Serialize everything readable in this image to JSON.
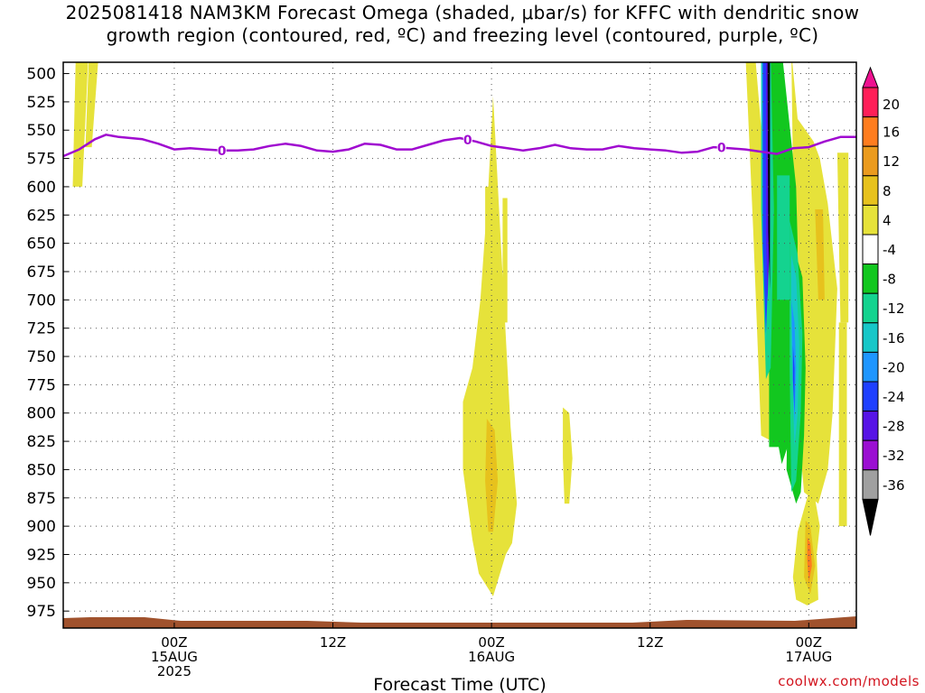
{
  "chart_data": {
    "type": "heatmap",
    "title_lines": [
      "2025081418 NAM3KM Forecast Omega (shaded, μbar/s) for KFFC with dendritic snow",
      "growth region (contoured, red, ºC) and freezing level (contoured, purple, ºC)"
    ],
    "xlabel": "Forecast Time (UTC)",
    "x_range_hours": [
      -7,
      43
    ],
    "y_range_mb": [
      490,
      990
    ],
    "y_ticks": [
      500,
      525,
      550,
      575,
      600,
      625,
      650,
      675,
      700,
      725,
      750,
      775,
      800,
      825,
      850,
      875,
      900,
      925,
      950,
      975
    ],
    "x_ticks": [
      {
        "hour": 0,
        "lines": [
          "00Z",
          "15AUG",
          "2025"
        ]
      },
      {
        "hour": 10,
        "lines": [
          "12Z"
        ]
      },
      {
        "hour": 20,
        "lines": [
          "00Z",
          "16AUG"
        ]
      },
      {
        "hour": 30,
        "lines": [
          "12Z"
        ]
      },
      {
        "hour": 40,
        "lines": [
          "00Z",
          "17AUG"
        ]
      }
    ],
    "grid": true,
    "colorbar": {
      "labels": [
        "20",
        "16",
        "12",
        "8",
        "4",
        "-4",
        "-8",
        "-12",
        "-16",
        "-20",
        "-24",
        "-28",
        "-32",
        "-36"
      ],
      "colors": [
        "#ff1f58",
        "#ff7d1f",
        "#eb9b1e",
        "#e7c21d",
        "#e6e23a",
        "#ffffff",
        "#12c71f",
        "#14d38f",
        "#17c7c8",
        "#1e96ff",
        "#1f40ff",
        "#5714e6",
        "#9b0fd2",
        "#a0a0a0"
      ],
      "top_color": "#ee1190",
      "bottom_color": "#000000"
    },
    "freezing_level": {
      "label": "0",
      "color": "#a00bd0",
      "hours": [
        -7,
        -6,
        -5,
        -4.3,
        -3.5,
        -2,
        -1,
        0,
        1,
        2,
        3,
        4,
        5,
        6,
        7,
        8,
        9,
        10,
        11,
        12,
        13,
        14,
        15,
        16,
        17,
        18,
        19,
        20,
        21,
        22,
        23,
        24,
        25,
        26,
        27,
        28,
        29,
        30,
        31,
        32,
        33,
        34,
        35,
        36,
        37,
        38,
        39,
        40,
        41,
        42,
        43
      ],
      "pressure_mb": [
        573,
        567,
        558,
        554,
        556,
        558,
        562,
        567,
        566,
        567,
        568,
        568,
        567,
        564,
        562,
        564,
        568,
        569,
        567,
        562,
        563,
        567,
        567,
        563,
        559,
        557,
        560,
        564,
        566,
        568,
        566,
        563,
        566,
        567,
        567,
        564,
        566,
        567,
        568,
        570,
        569,
        565,
        566,
        567,
        569,
        571,
        566,
        565,
        560,
        556,
        556
      ]
    },
    "omega_regions": [
      {
        "level": "4",
        "hours": [
          -6.2,
          -5.4,
          -5.8,
          -6.4
        ],
        "pressure_mb": [
          480,
          480,
          600,
          600
        ]
      },
      {
        "level": "4",
        "hours": [
          -5.4,
          -4.8,
          -5.2,
          -5.6
        ],
        "pressure_mb": [
          490,
          490,
          565,
          565
        ]
      },
      {
        "level": "4",
        "hours": [
          18.2,
          18.8,
          19.3,
          19.8,
          20.1,
          21.2,
          21.6,
          21.3,
          20.9,
          20.1,
          19.2,
          18.8,
          18.2
        ],
        "pressure_mb": [
          790,
          760,
          700,
          600,
          520,
          812,
          880,
          915,
          925,
          962,
          942,
          912,
          850
        ]
      },
      {
        "level": "4",
        "hours": [
          19.6,
          20.3,
          20.3,
          19.6
        ],
        "pressure_mb": [
          600,
          600,
          760,
          760
        ]
      },
      {
        "level": "8",
        "hours": [
          19.7,
          20.2,
          20.4,
          20.1,
          19.8,
          19.6
        ],
        "pressure_mb": [
          805,
          815,
          860,
          905,
          905,
          860
        ]
      },
      {
        "level": "4",
        "hours": [
          24.5,
          24.9,
          25.1,
          24.9,
          24.6,
          24.5
        ],
        "pressure_mb": [
          795,
          800,
          840,
          880,
          880,
          840
        ]
      },
      {
        "level": "4",
        "hours": [
          20.7,
          21.0,
          21.0,
          20.7
        ],
        "pressure_mb": [
          610,
          610,
          720,
          720
        ]
      },
      {
        "level": "4",
        "hours": [
          36.0,
          36.6,
          37.1,
          37.2,
          37.7,
          38.1,
          38.2,
          38.1,
          37.7,
          37.0,
          36.5
        ],
        "pressure_mb": [
          480,
          480,
          565,
          600,
          660,
          720,
          760,
          790,
          825,
          820,
          640
        ]
      },
      {
        "level": "4",
        "hours": [
          38.9,
          39.3,
          40.3,
          40.7,
          41.2,
          41.8,
          41.5,
          41.2,
          40.6,
          39.7,
          39.2
        ],
        "pressure_mb": [
          480,
          540,
          560,
          575,
          615,
          690,
          800,
          850,
          880,
          870,
          790
        ]
      },
      {
        "level": "4",
        "hours": [
          41.8,
          42.5,
          42.5,
          42.0
        ],
        "pressure_mb": [
          570,
          570,
          720,
          720
        ]
      },
      {
        "level": "4",
        "hours": [
          41.9,
          42.4,
          42.4,
          41.9
        ],
        "pressure_mb": [
          720,
          720,
          900,
          900
        ]
      },
      {
        "level": "8",
        "hours": [
          40.4,
          40.9,
          41.0,
          40.6
        ],
        "pressure_mb": [
          620,
          620,
          700,
          700
        ]
      },
      {
        "level": "4",
        "hours": [
          39.8,
          40.2,
          40.7,
          40.5,
          40.6,
          39.9,
          39.2,
          39.0,
          39.3
        ],
        "pressure_mb": [
          880,
          860,
          900,
          925,
          965,
          970,
          965,
          945,
          905
        ]
      },
      {
        "level": "8",
        "hours": [
          39.8,
          40.1,
          40.4,
          40.1,
          39.7
        ],
        "pressure_mb": [
          895,
          900,
          935,
          960,
          945
        ]
      },
      {
        "level": "16",
        "hours": [
          39.9,
          40.1,
          40.2,
          40.0,
          39.9
        ],
        "pressure_mb": [
          910,
          915,
          935,
          950,
          930
        ]
      },
      {
        "level": "-8",
        "hours": [
          37.4,
          38.3,
          38.9,
          39.2,
          39.3,
          39.2,
          38.9,
          38.3,
          38.1,
          37.5,
          37.5
        ],
        "pressure_mb": [
          480,
          480,
          560,
          600,
          650,
          750,
          820,
          845,
          830,
          830,
          760
        ]
      },
      {
        "level": "-8",
        "hours": [
          39.0,
          39.6,
          39.8,
          39.7,
          39.5,
          39.2,
          38.6,
          38.7
        ],
        "pressure_mb": [
          650,
          680,
          760,
          820,
          870,
          880,
          850,
          760
        ]
      },
      {
        "level": "-12",
        "hours": [
          38.0,
          38.8,
          38.8,
          38.0
        ],
        "pressure_mb": [
          590,
          590,
          700,
          700
        ]
      },
      {
        "level": "-12",
        "hours": [
          38.8,
          39.3,
          39.6,
          39.5,
          39.2,
          38.9,
          38.8
        ],
        "pressure_mb": [
          630,
          660,
          730,
          800,
          860,
          870,
          760
        ]
      },
      {
        "level": "-16",
        "hours": [
          38.9,
          39.2,
          39.4,
          39.3,
          39.1,
          38.9
        ],
        "pressure_mb": [
          660,
          680,
          740,
          800,
          830,
          740
        ]
      },
      {
        "level": "-20",
        "hours": [
          38.9,
          39.1,
          39.2,
          39.1,
          39.0
        ],
        "pressure_mb": [
          700,
          720,
          760,
          810,
          760
        ]
      },
      {
        "level": "-24",
        "hours": [
          39.0,
          39.1,
          39.1,
          39.0
        ],
        "pressure_mb": [
          740,
          760,
          800,
          770
        ]
      },
      {
        "level": "-12",
        "hours": [
          37.0,
          37.6,
          37.8,
          37.6,
          37.3,
          37.0
        ],
        "pressure_mb": [
          480,
          480,
          620,
          760,
          770,
          620
        ]
      },
      {
        "level": "-16",
        "hours": [
          37.0,
          37.5,
          37.5,
          37.3,
          37.1
        ],
        "pressure_mb": [
          480,
          480,
          650,
          740,
          650
        ]
      },
      {
        "level": "-24",
        "hours": [
          37.1,
          37.5,
          37.5,
          37.3,
          37.1
        ],
        "pressure_mb": [
          480,
          480,
          660,
          730,
          650
        ]
      },
      {
        "level": "-28",
        "hours": [
          37.3,
          37.55,
          37.55,
          37.4,
          37.3
        ],
        "pressure_mb": [
          480,
          480,
          640,
          700,
          640
        ]
      },
      {
        "level": "-36",
        "hours": [
          37.4,
          37.55,
          37.55,
          37.45,
          37.4
        ],
        "pressure_mb": [
          480,
          480,
          690,
          640,
          500
        ]
      }
    ]
  },
  "credit": "coolwx.com/models"
}
